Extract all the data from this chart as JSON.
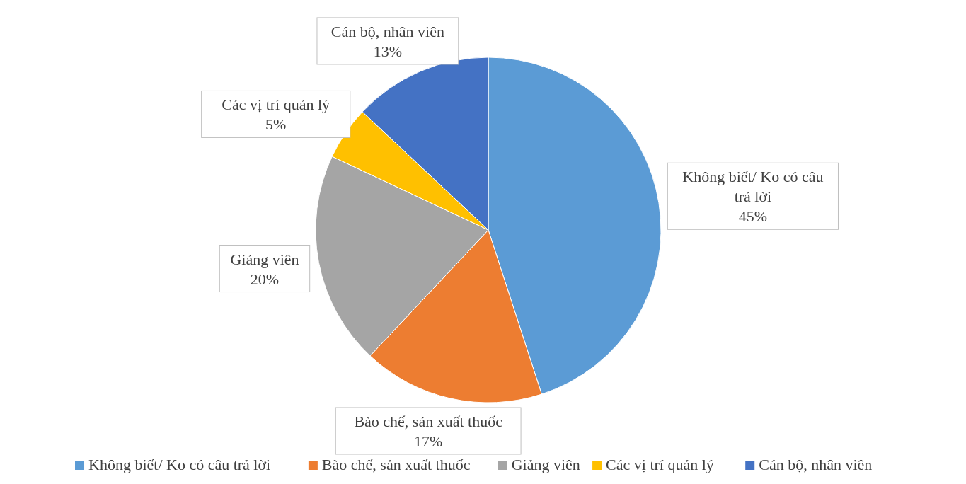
{
  "chart_data": {
    "type": "pie",
    "categories": [
      "Không biết/ Ko có câu trả lời",
      "Bào chế, sản xuất thuốc",
      "Giảng viên",
      "Các vị trí quản lý",
      "Cán bộ, nhân viên"
    ],
    "values": [
      45,
      17,
      20,
      5,
      13
    ],
    "colors": [
      "#5b9bd5",
      "#ed7d31",
      "#a5a5a5",
      "#ffc000",
      "#4472c4"
    ],
    "value_labels": [
      "45%",
      "17%",
      "20%",
      "5%",
      "13%"
    ],
    "legend": "bottom"
  }
}
